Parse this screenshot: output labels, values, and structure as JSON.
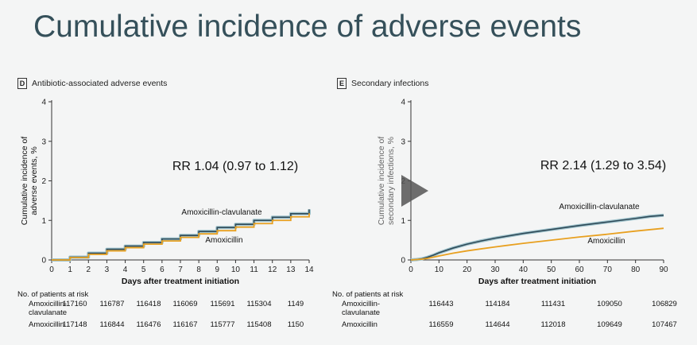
{
  "slide": {
    "title": "Cumulative incidence of adverse events"
  },
  "colors": {
    "amox_clav": "#2f4a58",
    "amox": "#e8a020",
    "axis": "#333333"
  },
  "panels": {
    "d": {
      "letter": "D",
      "title": "Antibiotic-associated adverse events",
      "rr_text": "RR 1.04 (0.97 to 1.12)"
    },
    "e": {
      "letter": "E",
      "title": "Secondary infections",
      "rr_text": "RR 2.14 (1.29 to 3.54)"
    }
  },
  "chart_data": [
    {
      "type": "line",
      "step": true,
      "title": "Antibiotic-associated adverse events",
      "xlabel": "Days after treatment initiation",
      "ylabel": "Cumulative incidence of adverse events, %",
      "xlim": [
        0,
        14
      ],
      "ylim": [
        0,
        4
      ],
      "xticks": [
        "0",
        "1",
        "2",
        "3",
        "4",
        "5",
        "6",
        "7",
        "8",
        "9",
        "10",
        "11",
        "12",
        "13",
        "14"
      ],
      "yticks": [
        "0",
        "1",
        "2",
        "3",
        "4"
      ],
      "annotation": "RR 1.04 (0.97 to 1.12)",
      "series": [
        {
          "name": "Amoxicillin-clavulanate",
          "x": [
            1,
            2,
            3,
            4,
            5,
            6,
            7,
            8,
            9,
            10,
            11,
            12,
            13,
            14
          ],
          "y": [
            0.07,
            0.17,
            0.27,
            0.35,
            0.44,
            0.53,
            0.62,
            0.72,
            0.82,
            0.9,
            1.0,
            1.08,
            1.17,
            1.28
          ]
        },
        {
          "name": "Amoxicillin",
          "x": [
            1,
            2,
            3,
            4,
            5,
            6,
            7,
            8,
            9,
            10,
            11,
            12,
            13,
            14
          ],
          "y": [
            0.06,
            0.14,
            0.23,
            0.31,
            0.4,
            0.48,
            0.57,
            0.66,
            0.74,
            0.83,
            0.92,
            1.0,
            1.09,
            1.18
          ]
        }
      ],
      "risk_table": {
        "header": "No. of patients at risk",
        "rows": [
          {
            "label_line1": "Amoxicillin-",
            "label_line2": "clavulanate",
            "values": [
              "117160",
              "116787",
              "116418",
              "116069",
              "115691",
              "115304",
              "1149"
            ]
          },
          {
            "label_line1": "Amoxicillin",
            "label_line2": "",
            "values": [
              "117148",
              "116844",
              "116476",
              "116167",
              "115777",
              "115408",
              "1150"
            ]
          }
        ]
      }
    },
    {
      "type": "line",
      "title": "Secondary infections",
      "xlabel": "Days after treatment initiation",
      "ylabel": "Cumulative incidence of secondary infections, %",
      "xlim": [
        0,
        90
      ],
      "ylim": [
        0,
        4
      ],
      "xticks": [
        "0",
        "10",
        "20",
        "30",
        "40",
        "50",
        "60",
        "70",
        "80",
        "90"
      ],
      "yticks": [
        "0",
        "1",
        "2",
        "3",
        "4"
      ],
      "annotation": "RR 2.14 (1.29 to 3.54)",
      "series": [
        {
          "name": "Amoxicillin-clavulanate",
          "x": [
            0,
            2,
            4,
            6,
            8,
            10,
            15,
            20,
            25,
            30,
            40,
            50,
            60,
            70,
            80,
            85,
            90
          ],
          "y": [
            0,
            0.01,
            0.03,
            0.07,
            0.12,
            0.18,
            0.3,
            0.4,
            0.48,
            0.55,
            0.67,
            0.77,
            0.87,
            0.96,
            1.05,
            1.1,
            1.13
          ]
        },
        {
          "name": "Amoxicillin",
          "x": [
            0,
            2,
            4,
            6,
            8,
            10,
            15,
            20,
            25,
            30,
            40,
            50,
            60,
            70,
            80,
            90
          ],
          "y": [
            0,
            0.01,
            0.02,
            0.04,
            0.07,
            0.1,
            0.17,
            0.23,
            0.28,
            0.33,
            0.42,
            0.5,
            0.58,
            0.65,
            0.73,
            0.8
          ]
        }
      ],
      "risk_table": {
        "header": "No. of patients at risk",
        "rows": [
          {
            "label_line1": "Amoxicillin-",
            "label_line2": "clavulanate",
            "values": [
              "116443",
              "114184",
              "111431",
              "109050",
              "106829"
            ]
          },
          {
            "label_line1": "Amoxicillin",
            "label_line2": "",
            "values": [
              "116559",
              "114644",
              "112018",
              "109649",
              "107467"
            ]
          }
        ]
      }
    }
  ]
}
